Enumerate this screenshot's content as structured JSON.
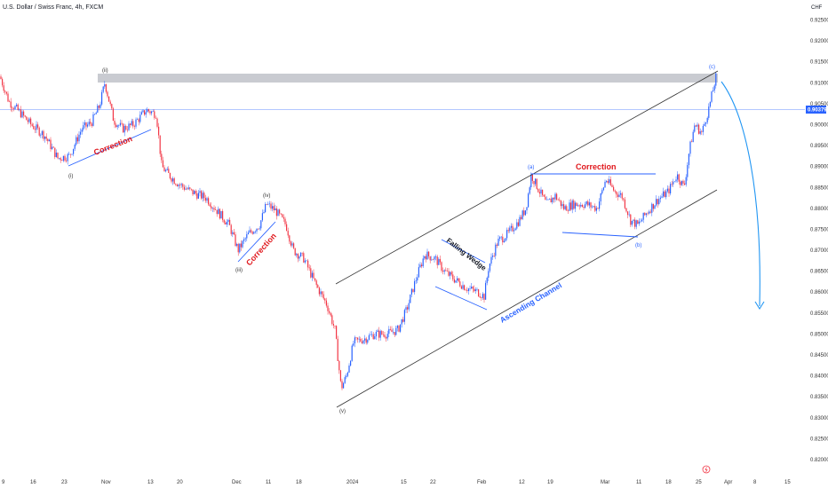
{
  "header": {
    "symbol_title": "U.S. Dollar / Swiss Franc, 4h, FXCM",
    "currency": "CHF"
  },
  "current_price_label": "0.90379",
  "colors": {
    "up": "#2962ff",
    "down": "#f23645",
    "price_line": "#2962ff",
    "resistance_zone": "#b2b5be",
    "correction_text": "#e0171c",
    "channel_text": "#2962ff",
    "lines": "#333333",
    "projection_arrow": "#2196f3"
  },
  "annotations": {
    "correction_1": "Correction",
    "correction_2": "Correction",
    "correction_3": "Correction",
    "falling_wedge": "Falling Wedge",
    "ascending_channel": "Ascending Channel",
    "wave_i": "(i)",
    "wave_ii": "(ii)",
    "wave_iii": "(iii)",
    "wave_iv": "(iv)",
    "wave_v": "(v)",
    "wave_a": "(a)",
    "wave_b": "(b)",
    "wave_c": "(c)"
  },
  "chart_data": {
    "type": "candlestick",
    "title": "U.S. Dollar / Swiss Franc, 4h, FXCM",
    "x_ticks": [
      "9",
      "16",
      "23",
      "Nov",
      "6",
      "13",
      "20",
      "Dec",
      "11",
      "18",
      "2024",
      "15",
      "22",
      "Feb",
      "12",
      "19",
      "Mar",
      "11",
      "18",
      "25",
      "Apr",
      "8",
      "15"
    ],
    "y_ticks": [
      "0.92500",
      "0.92000",
      "0.91500",
      "0.91000",
      "0.90500",
      "0.90000",
      "0.89500",
      "0.89000",
      "0.88500",
      "0.88000",
      "0.87500",
      "0.87000",
      "0.86500",
      "0.86000",
      "0.85500",
      "0.85000",
      "0.84500",
      "0.84000",
      "0.83500",
      "0.83000",
      "0.82500",
      "0.82000"
    ],
    "ylim": [
      0.8195,
      0.9275
    ],
    "last_price": 0.90379,
    "approx_path": [
      {
        "t": "9",
        "price": 0.911
      },
      {
        "t": "16",
        "price": 0.9035
      },
      {
        "t": "23",
        "price": 0.8915
      },
      {
        "t": "Nov",
        "price": 0.911
      },
      {
        "t": "6",
        "price": 0.8985
      },
      {
        "t": "13",
        "price": 0.903
      },
      {
        "t": "20",
        "price": 0.887
      },
      {
        "t": "Dec",
        "price": 0.88
      },
      {
        "t": "11",
        "price": 0.8795
      },
      {
        "t": "18",
        "price": 0.87
      },
      {
        "t": "2024",
        "price": 0.836
      },
      {
        "t": "15",
        "price": 0.853
      },
      {
        "t": "22",
        "price": 0.87
      },
      {
        "t": "Feb",
        "price": 0.858
      },
      {
        "t": "12",
        "price": 0.888
      },
      {
        "t": "19",
        "price": 0.881
      },
      {
        "t": "Mar",
        "price": 0.883
      },
      {
        "t": "11",
        "price": 0.877
      },
      {
        "t": "18",
        "price": 0.885
      },
      {
        "t": "25",
        "price": 0.9
      },
      {
        "t": "25",
        "price": 0.911
      }
    ]
  }
}
